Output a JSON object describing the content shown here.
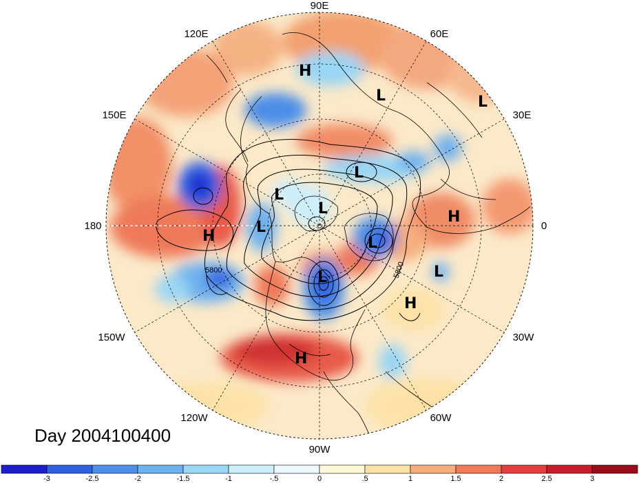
{
  "title": "Day 2004100400",
  "longitude_labels": {
    "e90": "90E",
    "e60": "60E",
    "e30": "30E",
    "zero": "0",
    "w30": "30W",
    "w60": "60W",
    "w90": "90W",
    "w120": "120W",
    "w150": "150W",
    "e180": "180",
    "e150": "150E",
    "e120": "120E"
  },
  "contour_labels": [
    "5800",
    "5800"
  ],
  "pressure_centers": [
    {
      "label": "H",
      "name": "h-siberia"
    },
    {
      "label": "L",
      "name": "l-central-asia"
    },
    {
      "label": "L",
      "name": "l-middle-east"
    },
    {
      "label": "L",
      "name": "l-arctic-east"
    },
    {
      "label": "L",
      "name": "l-arctic-west"
    },
    {
      "label": "L",
      "name": "l-pole"
    },
    {
      "label": "L",
      "name": "l-alaska"
    },
    {
      "label": "H",
      "name": "h-pacific"
    },
    {
      "label": "L",
      "name": "l-greenland"
    },
    {
      "label": "L",
      "name": "l-hudson"
    },
    {
      "label": "H",
      "name": "h-africa"
    },
    {
      "label": "L",
      "name": "l-atlantic"
    },
    {
      "label": "H",
      "name": "h-atlantic"
    },
    {
      "label": "H",
      "name": "h-mexico"
    }
  ],
  "colorbar": {
    "tick_labels": [
      "-3",
      "-2.5",
      "-2",
      "-1.5",
      "-1",
      "-.5",
      "0",
      ".5",
      "1",
      "1.5",
      "2",
      "2.5",
      "3"
    ],
    "colors": [
      "#1e1ecc",
      "#3060e0",
      "#4c8ee8",
      "#6eb1ef",
      "#9ad6f5",
      "#cdeefa",
      "#eef9fd",
      "#fff8d8",
      "#fde2a8",
      "#f6ad7d",
      "#ee7a5a",
      "#e04040",
      "#c41e2a",
      "#9a0c1c"
    ]
  },
  "colors": {
    "ocean_base": "#fbe9c8",
    "coast": "#000000"
  }
}
